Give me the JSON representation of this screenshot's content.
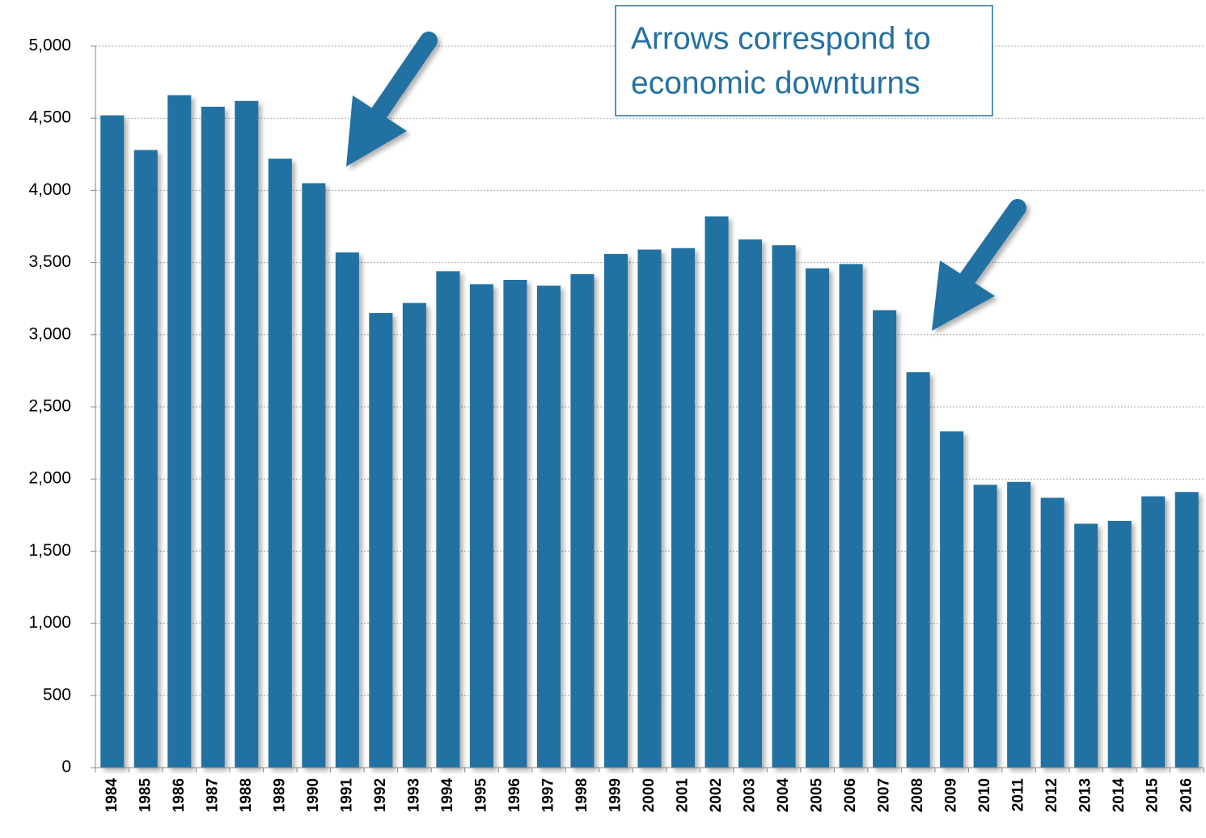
{
  "chart_data": {
    "type": "bar",
    "categories": [
      "1984",
      "1985",
      "1986",
      "1987",
      "1988",
      "1989",
      "1990",
      "1991",
      "1992",
      "1993",
      "1994",
      "1995",
      "1996",
      "1997",
      "1998",
      "1999",
      "2000",
      "2001",
      "2002",
      "2003",
      "2004",
      "2005",
      "2006",
      "2007",
      "2008",
      "2009",
      "2010",
      "2011",
      "2012",
      "2013",
      "2014",
      "2015",
      "2016"
    ],
    "values": [
      4520,
      4280,
      4660,
      4580,
      4620,
      4220,
      4050,
      3570,
      3150,
      3220,
      3440,
      3350,
      3380,
      3340,
      3420,
      3560,
      3590,
      3600,
      3820,
      3660,
      3620,
      3460,
      3490,
      3170,
      2740,
      2330,
      1960,
      1980,
      1870,
      1690,
      1710,
      1880,
      1910
    ],
    "color": "#2471a3",
    "ylim": [
      0,
      5000
    ],
    "yticks": [
      0,
      500,
      {
        "value": 1000,
        "label": "1,000"
      },
      {
        "value": 1500,
        "label": "1,500"
      },
      {
        "value": 2000,
        "label": "2,000"
      },
      {
        "value": 2500,
        "label": "2,500"
      },
      {
        "value": 3000,
        "label": "3,000"
      },
      {
        "value": 3500,
        "label": "3,500"
      },
      {
        "value": 4000,
        "label": "4,000"
      },
      {
        "value": 4500,
        "label": "4,500"
      },
      {
        "value": 5000,
        "label": "5,000"
      }
    ],
    "grid": true,
    "annotation": [
      "Arrows correspond to",
      "economic downturns"
    ]
  }
}
